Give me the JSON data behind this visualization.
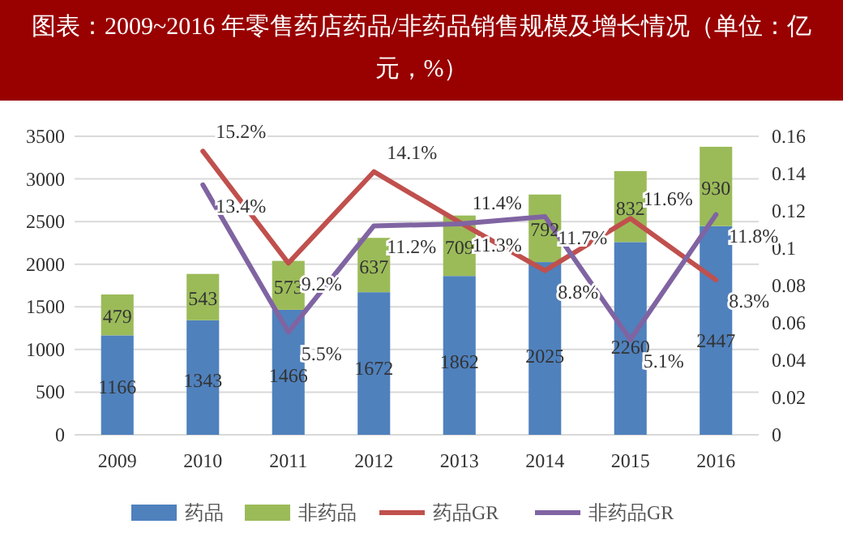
{
  "chart_data": {
    "type": "bar",
    "title": "图表：2009~2016 年零售药店药品/非药品销售规模及增长情况（单位：亿元，%）",
    "categories": [
      "2009",
      "2010",
      "2011",
      "2012",
      "2013",
      "2014",
      "2015",
      "2016"
    ],
    "stacked": true,
    "data_labels": true,
    "grid": "y",
    "legend": "bottom",
    "ylim": [
      0,
      3500
    ],
    "yticks": [
      0,
      500,
      1000,
      1500,
      2000,
      2500,
      3000,
      3500
    ],
    "y2lim": [
      0,
      0.16
    ],
    "y2ticks": [
      0,
      0.02,
      0.04,
      0.06,
      0.08,
      0.1,
      0.12,
      0.14,
      0.16
    ],
    "series": [
      {
        "name": "药品",
        "color": "#4f81bd",
        "values": [
          1166,
          1343,
          1466,
          1672,
          1862,
          2025,
          2260,
          2447
        ]
      },
      {
        "name": "非药品",
        "color": "#9bbb59",
        "values": [
          479,
          543,
          573,
          637,
          709,
          792,
          832,
          930
        ]
      },
      {
        "name": "药品GR",
        "type": "line",
        "axis": "y2",
        "color": "#c0504d",
        "values": [
          null,
          0.152,
          0.092,
          0.141,
          0.114,
          0.088,
          0.116,
          0.083
        ],
        "value_labels": [
          null,
          "15.2%",
          "9.2%",
          "14.1%",
          "11.4%",
          "8.8%",
          "11.6%",
          "8.3%"
        ]
      },
      {
        "name": "非药品GR",
        "type": "line",
        "axis": "y2",
        "color": "#8064a2",
        "values": [
          null,
          0.134,
          0.055,
          0.112,
          0.113,
          0.117,
          0.051,
          0.118
        ],
        "value_labels": [
          null,
          "13.4%",
          "5.5%",
          "11.2%",
          "11.3%",
          "11.7%",
          "5.1%",
          "11.8%"
        ]
      }
    ]
  }
}
